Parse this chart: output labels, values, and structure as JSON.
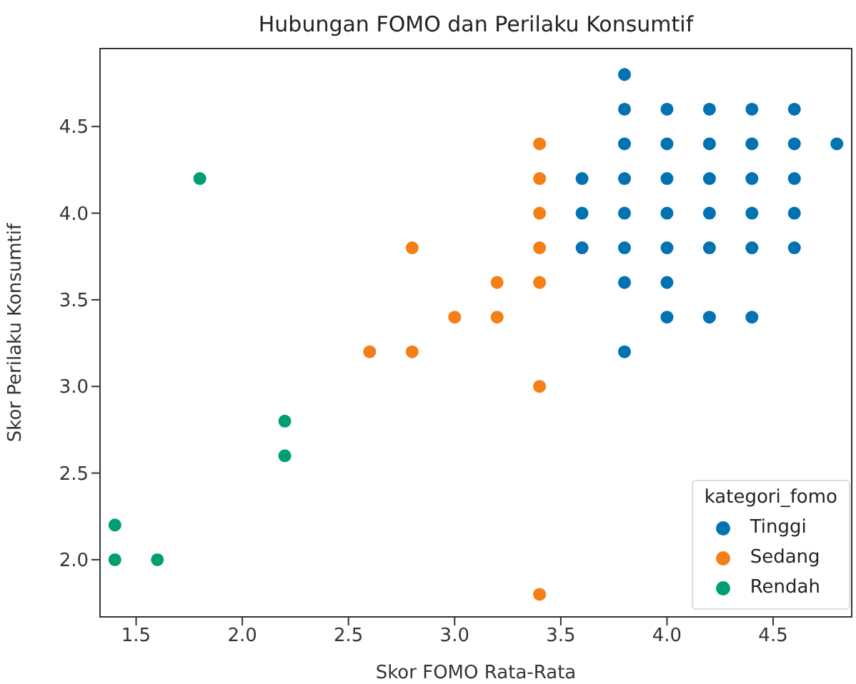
{
  "chart_data": {
    "type": "scatter",
    "title": "Hubungan FOMO dan Perilaku Konsumtif",
    "xlabel": "Skor FOMO Rata-Rata",
    "ylabel": "Skor Perilaku Konsumtif",
    "legend_title": "kategori_fomo",
    "legend": "bottom right",
    "marker": "circle",
    "grid": false,
    "xlim": [
      1.33,
      4.87
    ],
    "ylim": [
      1.67,
      4.95
    ],
    "xticks": [
      {
        "value": 1.5,
        "label": "1.5"
      },
      {
        "value": 2,
        "label": "2.0"
      },
      {
        "value": 2.5,
        "label": "2.5"
      },
      {
        "value": 3,
        "label": "3.0"
      },
      {
        "value": 3.5,
        "label": "3.5"
      },
      {
        "value": 4,
        "label": "4.0"
      },
      {
        "value": 4.5,
        "label": "4.5"
      }
    ],
    "yticks": [
      {
        "value": 2,
        "label": "2.0"
      },
      {
        "value": 2.5,
        "label": "2.5"
      },
      {
        "value": 3,
        "label": "3.0"
      },
      {
        "value": 3.5,
        "label": "3.5"
      },
      {
        "value": 4,
        "label": "4.0"
      },
      {
        "value": 4.5,
        "label": "4.5"
      }
    ],
    "series": [
      {
        "name": "Tinggi",
        "color": "#0173b2",
        "x": [
          3.6,
          3.6,
          3.6,
          3.8,
          3.8,
          3.8,
          3.8,
          3.8,
          3.8,
          3.8,
          3.8,
          4.0,
          4.0,
          4.0,
          4.0,
          4.0,
          4.0,
          4.0,
          4.2,
          4.2,
          4.2,
          4.2,
          4.2,
          4.2,
          4.4,
          4.4,
          4.4,
          4.4,
          4.4,
          4.4,
          4.6,
          4.6,
          4.6,
          4.6,
          4.6,
          4.8
        ],
        "values": [
          4.2,
          4.0,
          3.8,
          4.8,
          4.6,
          4.4,
          4.2,
          4.0,
          3.8,
          3.6,
          3.2,
          4.6,
          4.4,
          4.2,
          4.0,
          3.8,
          3.6,
          3.4,
          4.6,
          4.4,
          4.2,
          4.0,
          3.8,
          3.4,
          4.6,
          4.4,
          4.2,
          4.0,
          3.8,
          3.4,
          4.6,
          4.4,
          4.2,
          4.0,
          3.8,
          4.4
        ]
      },
      {
        "name": "Sedang",
        "color": "#f57f17",
        "x": [
          3.4,
          3.4,
          3.4,
          3.4,
          3.4,
          3.4,
          3.4,
          2.8,
          3.2,
          3.0,
          3.2,
          2.6,
          2.8
        ],
        "values": [
          4.4,
          4.2,
          4.0,
          3.8,
          3.6,
          3.0,
          1.8,
          3.8,
          3.6,
          3.4,
          3.4,
          3.2,
          3.2
        ]
      },
      {
        "name": "Rendah",
        "color": "#029e73",
        "x": [
          1.8,
          2.2,
          2.2,
          1.4,
          1.4,
          1.6
        ],
        "values": [
          4.2,
          2.8,
          2.6,
          2.2,
          2.0,
          2.0
        ]
      }
    ]
  }
}
